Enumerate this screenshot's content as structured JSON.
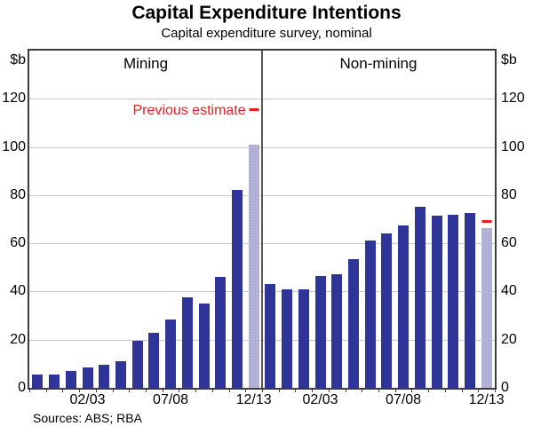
{
  "title": "Capital Expenditure Intentions",
  "subtitle": "Capital expenditure survey, nominal",
  "source_note": "Sources: ABS; RBA",
  "unit_label_left": "$b",
  "unit_label_right": "$b",
  "legend": {
    "previous_estimate_label": "Previous estimate"
  },
  "colors": {
    "bar": "#2f3499",
    "estimate_bar": "#b6b5da",
    "estimate_bar_dot": "#a2a1cf",
    "previous_estimate_red": "#ee1c1c",
    "gridline": "#c9c9c9",
    "frame": "#3d3d3d"
  },
  "y_axis": {
    "ticks": [
      0,
      20,
      40,
      60,
      80,
      100,
      120
    ],
    "max": 140
  },
  "chart_data": {
    "type": "bar",
    "unit": "$b",
    "ylim": [
      0,
      140
    ],
    "grid": true,
    "panels": [
      {
        "label": "Mining",
        "values": [
          5.5,
          5.5,
          7,
          8.5,
          9.5,
          11,
          19.5,
          23,
          28.5,
          37.5,
          35,
          46,
          82,
          101
        ],
        "estimate_index": 13,
        "previous_estimate": 115,
        "x_ticks": [
          {
            "label": "02/03",
            "bar_index": 3
          },
          {
            "label": "07/08",
            "bar_index": 8
          },
          {
            "label": "12/13",
            "bar_index": 13
          }
        ]
      },
      {
        "label": "Non-mining",
        "values": [
          43,
          41,
          41,
          46.5,
          47,
          53.5,
          61,
          64,
          67.5,
          75,
          71.5,
          72,
          72.5,
          66.5
        ],
        "estimate_index": 13,
        "previous_estimate": 68.5,
        "x_ticks": [
          {
            "label": "02/03",
            "bar_index": 3
          },
          {
            "label": "07/08",
            "bar_index": 8
          },
          {
            "label": "12/13",
            "bar_index": 13
          }
        ]
      }
    ]
  }
}
